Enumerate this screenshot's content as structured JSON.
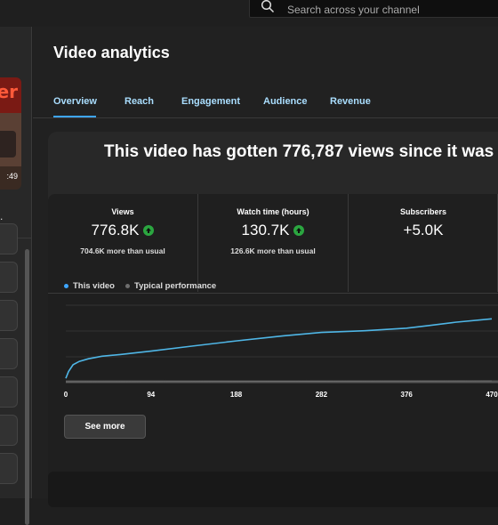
{
  "search": {
    "placeholder": "Search across your channel"
  },
  "sidebar": {
    "thumbnail_text": "er",
    "duration": ":49",
    "truncated_text": "."
  },
  "page": {
    "title": "Video analytics"
  },
  "tabs": [
    {
      "label": "Overview",
      "active": true
    },
    {
      "label": "Reach",
      "active": false
    },
    {
      "label": "Engagement",
      "active": false
    },
    {
      "label": "Audience",
      "active": false
    },
    {
      "label": "Revenue",
      "active": false
    }
  ],
  "headline": "This video has gotten 776,787 views since it was",
  "metrics": [
    {
      "label": "Views",
      "value": "776.8K",
      "trend": "up",
      "sub": "704.6K more than usual"
    },
    {
      "label": "Watch time (hours)",
      "value": "130.7K",
      "trend": "up",
      "sub": "126.6K more than usual"
    },
    {
      "label": "Subscribers",
      "value": "+5.0K",
      "trend": "",
      "sub": ""
    }
  ],
  "legend": [
    {
      "name": "This video",
      "color": "#3ea6ff"
    },
    {
      "name": "Typical performance",
      "color": "#6e6e6e"
    }
  ],
  "chart_data": {
    "type": "line",
    "x_ticks": [
      "0",
      "94",
      "188",
      "282",
      "376",
      "470"
    ],
    "xlim": [
      0,
      470
    ],
    "series": [
      {
        "name": "This video",
        "color": "#4fb6e6",
        "x": [
          0,
          3,
          8,
          15,
          25,
          40,
          60,
          94,
          140,
          188,
          240,
          282,
          330,
          376,
          400,
          430,
          470
        ],
        "y": [
          0.04,
          0.12,
          0.2,
          0.24,
          0.27,
          0.3,
          0.32,
          0.36,
          0.42,
          0.48,
          0.54,
          0.58,
          0.6,
          0.63,
          0.66,
          0.7,
          0.74
        ]
      },
      {
        "name": "Typical performance",
        "color": "#6e6e6e",
        "x": [
          0,
          470
        ],
        "y": [
          0.0,
          0.01
        ]
      }
    ]
  },
  "buttons": {
    "see_more": "See more"
  }
}
